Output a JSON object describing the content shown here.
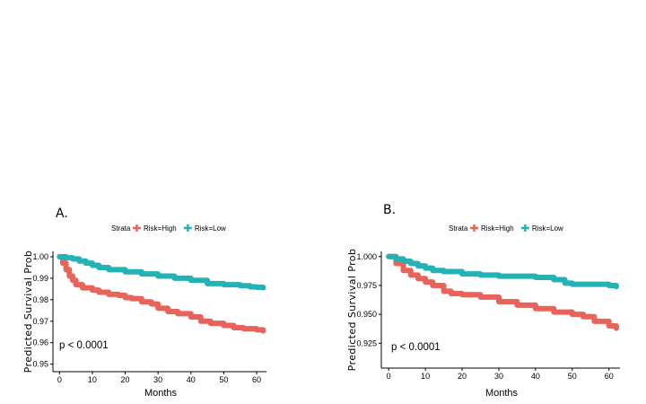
{
  "chart_data": [
    {
      "type": "line",
      "panel_label": "A.",
      "legend": {
        "title": "Strata",
        "position": "top"
      },
      "series": [
        {
          "name": "Risk=High",
          "color": "#E8645A",
          "x": [
            0,
            1,
            2,
            3,
            4,
            5,
            7,
            10,
            12,
            15,
            18,
            20,
            22,
            25,
            28,
            30,
            33,
            36,
            40,
            43,
            46,
            50,
            53,
            56,
            60,
            62
          ],
          "y": [
            1.0,
            0.997,
            0.994,
            0.991,
            0.989,
            0.987,
            0.9855,
            0.9845,
            0.9835,
            0.9825,
            0.982,
            0.981,
            0.9805,
            0.979,
            0.978,
            0.976,
            0.9745,
            0.9735,
            0.972,
            0.97,
            0.969,
            0.968,
            0.967,
            0.9665,
            0.966,
            0.9655
          ]
        },
        {
          "name": "Risk=Low",
          "color": "#23B3B5",
          "x": [
            0,
            2,
            4,
            6,
            8,
            10,
            12,
            15,
            20,
            25,
            30,
            35,
            40,
            45,
            50,
            55,
            58,
            60,
            62
          ],
          "y": [
            1.0,
            0.9995,
            0.999,
            0.998,
            0.997,
            0.996,
            0.995,
            0.994,
            0.993,
            0.992,
            0.991,
            0.99,
            0.989,
            0.9875,
            0.987,
            0.9865,
            0.986,
            0.9858,
            0.9855
          ]
        }
      ],
      "xlabel": "Months",
      "ylabel": "Predicted Survival Prob",
      "xlim": [
        -2,
        63
      ],
      "ylim": [
        0.9465,
        1.0025
      ],
      "xticks": [
        0,
        10,
        20,
        30,
        40,
        50,
        60
      ],
      "yticks": [
        0.95,
        0.96,
        0.97,
        0.98,
        0.99,
        1.0
      ],
      "ytick_labels": [
        "0.95",
        "0.96",
        "0.97",
        "0.98",
        "0.99",
        "1.00"
      ],
      "annotation": "p < 0.0001"
    },
    {
      "type": "line",
      "panel_label": "B.",
      "legend": {
        "title": "Strata",
        "position": "top"
      },
      "series": [
        {
          "name": "Risk=High",
          "color": "#E8645A",
          "x": [
            0,
            2,
            4,
            6,
            8,
            10,
            12,
            15,
            17,
            20,
            25,
            30,
            35,
            40,
            45,
            50,
            53,
            56,
            60,
            62
          ],
          "y": [
            1.0,
            0.994,
            0.988,
            0.984,
            0.981,
            0.978,
            0.975,
            0.97,
            0.968,
            0.967,
            0.965,
            0.961,
            0.958,
            0.955,
            0.952,
            0.95,
            0.948,
            0.944,
            0.94,
            0.938
          ]
        },
        {
          "name": "Risk=Low",
          "color": "#23B3B5",
          "x": [
            0,
            2,
            4,
            6,
            8,
            10,
            12,
            15,
            20,
            25,
            30,
            35,
            40,
            45,
            48,
            50,
            55,
            60,
            62
          ],
          "y": [
            1.0,
            0.998,
            0.996,
            0.994,
            0.992,
            0.99,
            0.988,
            0.987,
            0.985,
            0.984,
            0.983,
            0.983,
            0.982,
            0.98,
            0.977,
            0.976,
            0.976,
            0.975,
            0.974
          ]
        }
      ],
      "xlabel": "Months",
      "ylabel": "Predicted Survival Prob",
      "xlim": [
        -2,
        63
      ],
      "ylim": [
        0.9035,
        1.0045
      ],
      "xticks": [
        0,
        10,
        20,
        30,
        40,
        50,
        60
      ],
      "yticks": [
        0.925,
        0.95,
        0.975,
        1.0
      ],
      "ytick_labels": [
        "0.925",
        "0.950",
        "0.975",
        "1.000"
      ],
      "annotation": "p < 0.0001"
    }
  ]
}
